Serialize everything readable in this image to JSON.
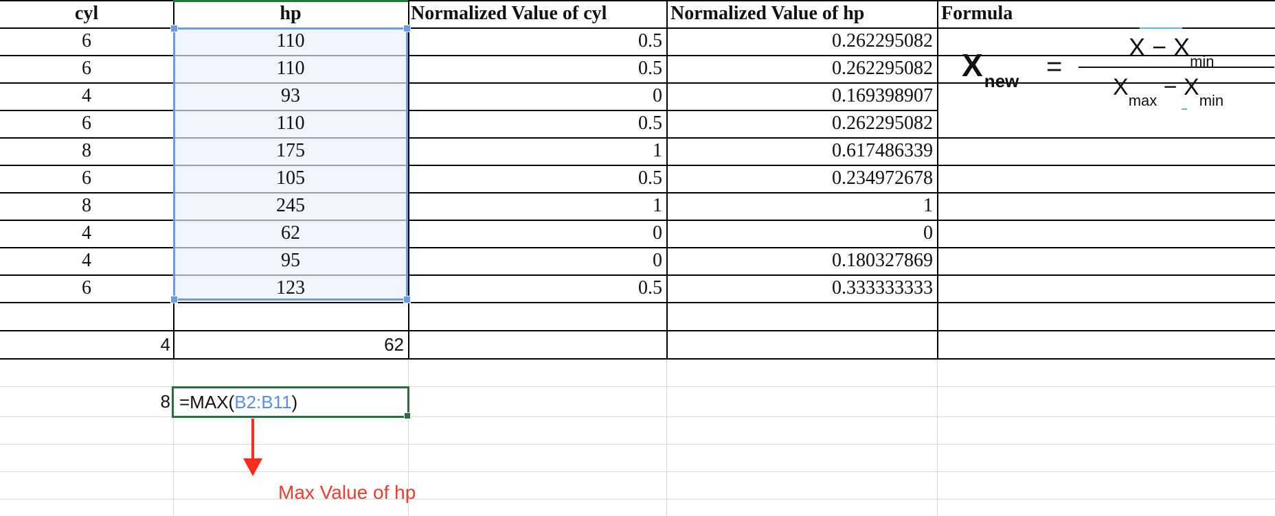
{
  "headers": {
    "cyl": "cyl",
    "hp": "hp",
    "norm_cyl": "Normalized Value of cyl",
    "norm_hp": "Normalized Value of hp",
    "formula": "Formula"
  },
  "rows": [
    {
      "cyl": "6",
      "hp": "110",
      "norm_cyl": "0.5",
      "norm_hp": "0.262295082"
    },
    {
      "cyl": "6",
      "hp": "110",
      "norm_cyl": "0.5",
      "norm_hp": "0.262295082"
    },
    {
      "cyl": "4",
      "hp": "93",
      "norm_cyl": "0",
      "norm_hp": "0.169398907"
    },
    {
      "cyl": "6",
      "hp": "110",
      "norm_cyl": "0.5",
      "norm_hp": "0.262295082"
    },
    {
      "cyl": "8",
      "hp": "175",
      "norm_cyl": "1",
      "norm_hp": "0.617486339"
    },
    {
      "cyl": "6",
      "hp": "105",
      "norm_cyl": "0.5",
      "norm_hp": "0.234972678"
    },
    {
      "cyl": "8",
      "hp": "245",
      "norm_cyl": "1",
      "norm_hp": "1"
    },
    {
      "cyl": "4",
      "hp": "62",
      "norm_cyl": "0",
      "norm_hp": "0"
    },
    {
      "cyl": "4",
      "hp": "95",
      "norm_cyl": "0",
      "norm_hp": "0.180327869"
    },
    {
      "cyl": "6",
      "hp": "123",
      "norm_cyl": "0.5",
      "norm_hp": "0.333333333"
    }
  ],
  "min_row": {
    "cyl": "4",
    "hp": "62"
  },
  "max_row": {
    "cyl": "8",
    "formula_prefix": "=MAX(",
    "formula_ref": "B2:B11",
    "formula_suffix": ")"
  },
  "annotation": "Max Value of hp",
  "equation": {
    "lhs": "X",
    "lhs_sub": "new",
    "equals": "=",
    "num_x": "X − X",
    "num_sub": "min",
    "den_x1": "X",
    "den_sub1": "max",
    "den_mid": " − X",
    "den_sub2": "min"
  },
  "colors": {
    "selection": "#6e9be8",
    "active_cell": "#2b6e3d",
    "annotation": "#f03c2f",
    "formula_ref": "#5b8def"
  }
}
